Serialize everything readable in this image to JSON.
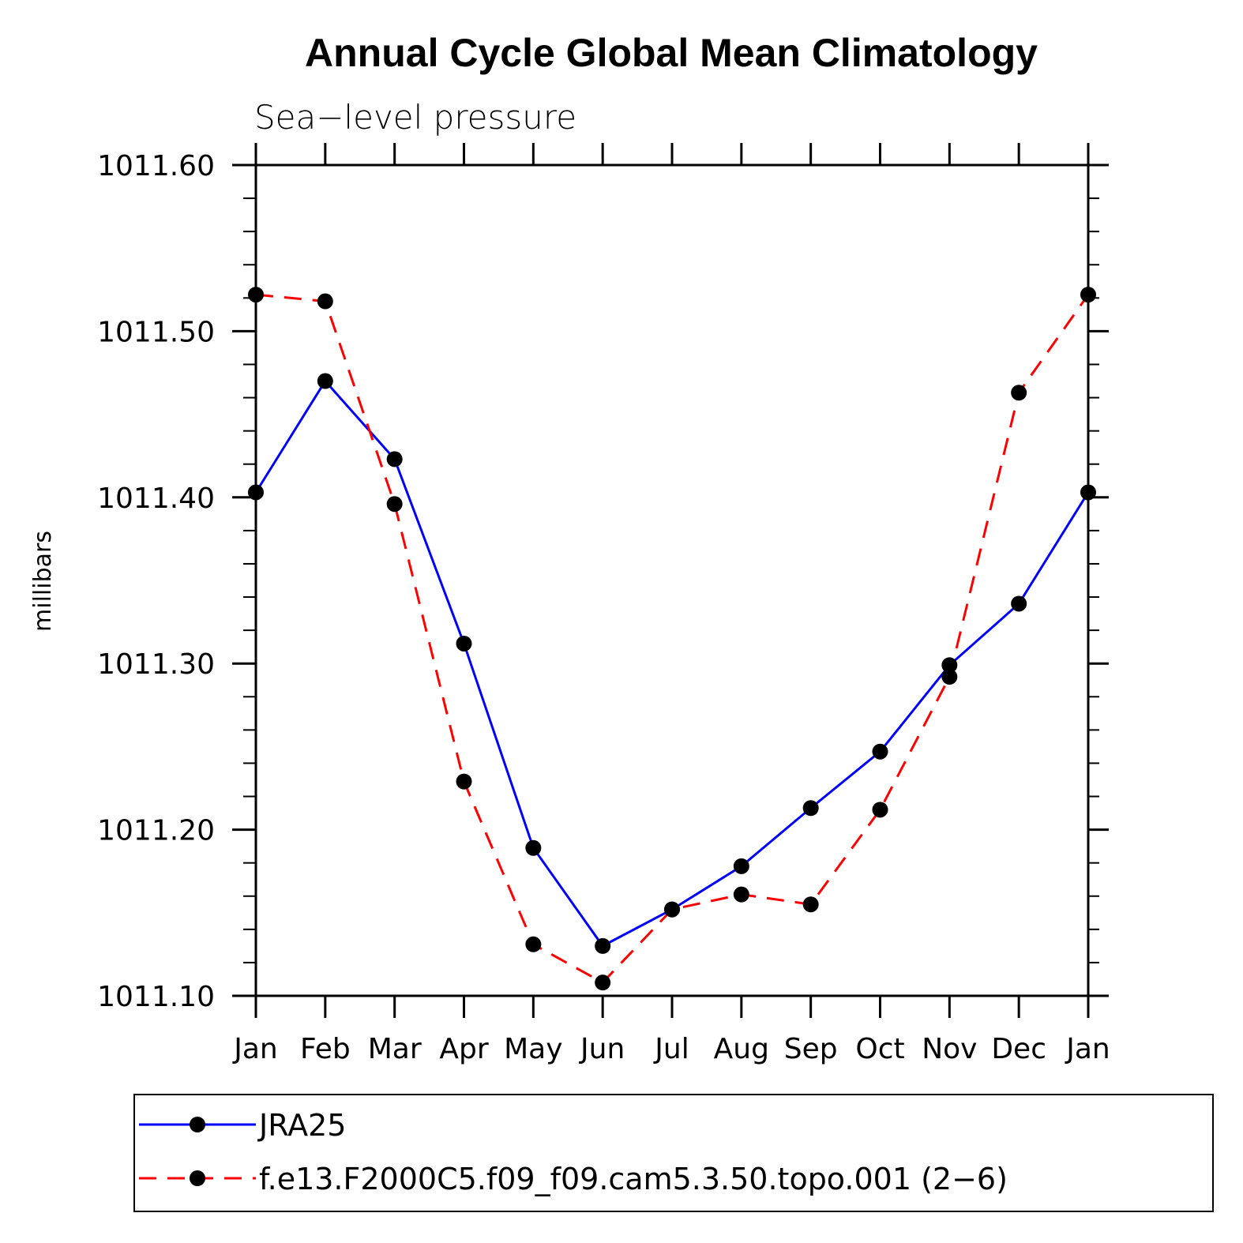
{
  "chart_data": {
    "type": "line",
    "title": "Annual Cycle Global Mean Climatology",
    "subtitle": "Sea−level pressure",
    "xlabel": "",
    "ylabel": "millibars",
    "categories": [
      "Jan",
      "Feb",
      "Mar",
      "Apr",
      "May",
      "Jun",
      "Jul",
      "Aug",
      "Sep",
      "Oct",
      "Nov",
      "Dec",
      "Jan"
    ],
    "ylim": [
      1011.1,
      1011.6
    ],
    "yticks": [
      "1011.10",
      "1011.20",
      "1011.30",
      "1011.40",
      "1011.50",
      "1011.60"
    ],
    "ytick_values": [
      1011.1,
      1011.2,
      1011.3,
      1011.4,
      1011.5,
      1011.6
    ],
    "ytick_minor_step": 0.02,
    "legend_position": "bottom",
    "series": [
      {
        "name": "JRA25",
        "color": "#0000ff",
        "dash": "solid",
        "marker": "filled-circle",
        "values": [
          1011.403,
          1011.47,
          1011.423,
          1011.312,
          1011.189,
          1011.13,
          1011.152,
          1011.178,
          1011.213,
          1011.247,
          1011.299,
          1011.336,
          1011.403
        ]
      },
      {
        "name": "f.e13.F2000C5.f09_f09.cam5.3.50.topo.001 (2−6)",
        "color": "#ff0000",
        "dash": "dashed",
        "marker": "filled-circle",
        "values": [
          1011.522,
          1011.518,
          1011.396,
          1011.229,
          1011.131,
          1011.108,
          1011.152,
          1011.161,
          1011.155,
          1011.212,
          1011.292,
          1011.463,
          1011.522
        ]
      }
    ]
  }
}
